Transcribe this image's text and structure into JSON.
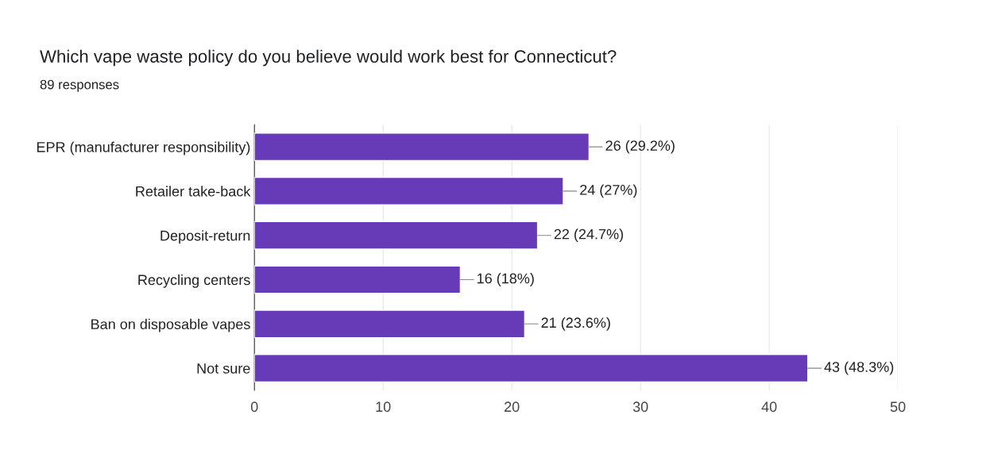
{
  "chart_data": {
    "type": "bar",
    "orientation": "horizontal",
    "title": "Which vape waste policy do you believe would work best for Connecticut?",
    "subtitle": "89 responses",
    "categories": [
      "EPR (manufacturer responsibility)",
      "Retailer take-back",
      "Deposit-return",
      "Recycling centers",
      "Ban on disposable vapes",
      "Not sure"
    ],
    "values": [
      26,
      24,
      22,
      16,
      21,
      43
    ],
    "value_labels": [
      "26 (29.2%)",
      "24 (27%)",
      "22 (24.7%)",
      "16 (18%)",
      "21 (23.6%)",
      "43 (48.3%)"
    ],
    "color": "#673ab7",
    "xlim": [
      0,
      50
    ],
    "xticks": [
      0,
      10,
      20,
      30,
      40,
      50
    ],
    "grid": "x",
    "legend": false
  }
}
